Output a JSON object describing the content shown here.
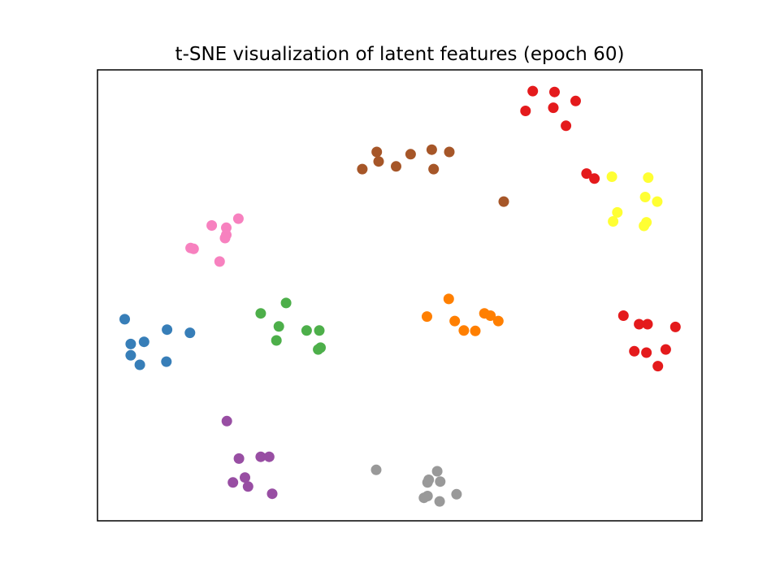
{
  "chart_data": {
    "type": "scatter",
    "title": "t-SNE visualization of latent features (epoch 60)",
    "xlabel": "",
    "ylabel": "",
    "axes_visible": false,
    "grid": false,
    "legend": "none",
    "xlim": [
      0,
      100
    ],
    "ylim": [
      0,
      100
    ],
    "groups": [
      {
        "color": "#e41a1c",
        "points": [
          [
            72.0,
            95.3
          ],
          [
            75.6,
            95.1
          ],
          [
            79.1,
            93.1
          ],
          [
            70.8,
            90.9
          ],
          [
            75.4,
            91.6
          ],
          [
            77.5,
            87.6
          ],
          [
            80.9,
            77.0
          ],
          [
            82.2,
            75.9
          ]
        ]
      },
      {
        "color": "#a65628",
        "points": [
          [
            46.2,
            81.8
          ],
          [
            51.8,
            81.3
          ],
          [
            55.3,
            82.3
          ],
          [
            58.2,
            81.8
          ],
          [
            49.4,
            78.6
          ],
          [
            46.5,
            79.7
          ],
          [
            43.8,
            78.0
          ],
          [
            55.6,
            78.0
          ],
          [
            67.2,
            70.8
          ]
        ]
      },
      {
        "color": "#ffff33",
        "points": [
          [
            85.1,
            76.3
          ],
          [
            91.1,
            76.1
          ],
          [
            90.6,
            71.8
          ],
          [
            92.6,
            70.8
          ],
          [
            86.0,
            68.4
          ],
          [
            85.3,
            66.4
          ],
          [
            90.8,
            66.2
          ],
          [
            90.4,
            65.4
          ]
        ]
      },
      {
        "color": "#f781bf",
        "points": [
          [
            23.3,
            67.0
          ],
          [
            21.3,
            65.0
          ],
          [
            18.9,
            65.5
          ],
          [
            21.3,
            63.4
          ],
          [
            21.1,
            62.7
          ],
          [
            15.4,
            60.5
          ],
          [
            15.9,
            60.3
          ],
          [
            20.2,
            57.5
          ]
        ]
      },
      {
        "color": "#377eb8",
        "points": [
          [
            4.5,
            44.7
          ],
          [
            11.5,
            42.4
          ],
          [
            15.3,
            41.7
          ],
          [
            7.7,
            39.7
          ],
          [
            5.5,
            39.2
          ],
          [
            5.5,
            36.7
          ],
          [
            7.0,
            34.6
          ],
          [
            11.4,
            35.3
          ]
        ]
      },
      {
        "color": "#4daf4a",
        "points": [
          [
            31.2,
            48.3
          ],
          [
            27.0,
            46.0
          ],
          [
            30.0,
            43.1
          ],
          [
            34.6,
            42.2
          ],
          [
            36.7,
            42.2
          ],
          [
            29.6,
            40.0
          ],
          [
            36.9,
            38.4
          ],
          [
            36.5,
            38.0
          ]
        ]
      },
      {
        "color": "#ff7f00",
        "points": [
          [
            58.1,
            49.2
          ],
          [
            54.5,
            45.3
          ],
          [
            59.1,
            44.3
          ],
          [
            64.0,
            46.0
          ],
          [
            65.0,
            45.5
          ],
          [
            66.3,
            44.3
          ],
          [
            60.6,
            42.2
          ],
          [
            62.5,
            42.1
          ]
        ]
      },
      {
        "color": "#e41a1c",
        "points": [
          [
            87.0,
            45.5
          ],
          [
            89.6,
            43.6
          ],
          [
            91.0,
            43.6
          ],
          [
            95.6,
            43.0
          ],
          [
            88.8,
            37.6
          ],
          [
            94.0,
            38.0
          ],
          [
            90.8,
            37.3
          ],
          [
            92.7,
            34.3
          ]
        ]
      },
      {
        "color": "#984ea3",
        "points": [
          [
            21.4,
            22.1
          ],
          [
            27.0,
            14.2
          ],
          [
            28.4,
            14.2
          ],
          [
            23.4,
            13.8
          ],
          [
            24.4,
            9.6
          ],
          [
            22.4,
            8.5
          ],
          [
            24.9,
            7.6
          ],
          [
            28.9,
            6.0
          ]
        ]
      },
      {
        "color": "#999999",
        "points": [
          [
            46.1,
            11.3
          ],
          [
            56.2,
            11.0
          ],
          [
            54.8,
            9.1
          ],
          [
            56.7,
            8.7
          ],
          [
            54.6,
            8.5
          ],
          [
            54.6,
            5.5
          ],
          [
            59.4,
            5.9
          ],
          [
            54.0,
            5.1
          ],
          [
            56.6,
            4.3
          ]
        ]
      }
    ]
  }
}
